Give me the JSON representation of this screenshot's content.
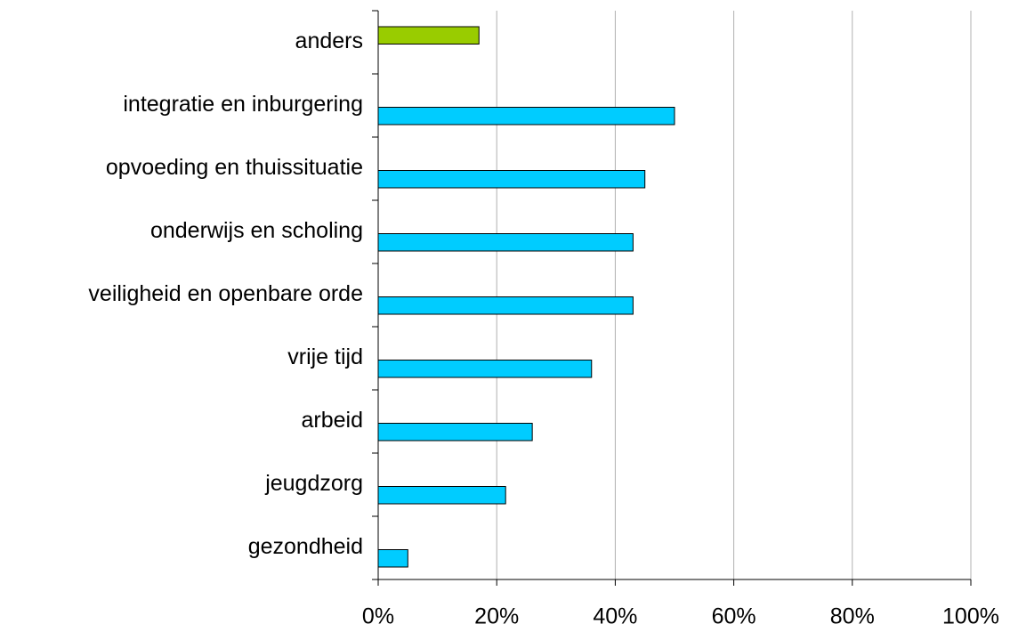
{
  "chart_data": {
    "type": "barh",
    "categories": [
      "anders",
      "integratie en inburgering",
      "opvoeding en thuissituatie",
      "onderwijs en scholing",
      "veiligheid en openbare orde",
      "vrije tijd",
      "arbeid",
      "jeugdzorg",
      "gezondheid"
    ],
    "series": [
      {
        "color": "#99cc00",
        "values": [
          17,
          null,
          null,
          null,
          null,
          null,
          null,
          null,
          null
        ]
      },
      {
        "color": "#00ccff",
        "values": [
          null,
          50,
          45,
          43,
          43,
          36,
          26,
          21.5,
          5
        ]
      }
    ],
    "xlim": [
      0,
      100
    ],
    "xticks": [
      {
        "value": 0,
        "label": "0%"
      },
      {
        "value": 20,
        "label": "20%"
      },
      {
        "value": 40,
        "label": "40%"
      },
      {
        "value": 60,
        "label": "60%"
      },
      {
        "value": 80,
        "label": "80%"
      },
      {
        "value": 100,
        "label": "100%"
      }
    ],
    "grid": true
  }
}
